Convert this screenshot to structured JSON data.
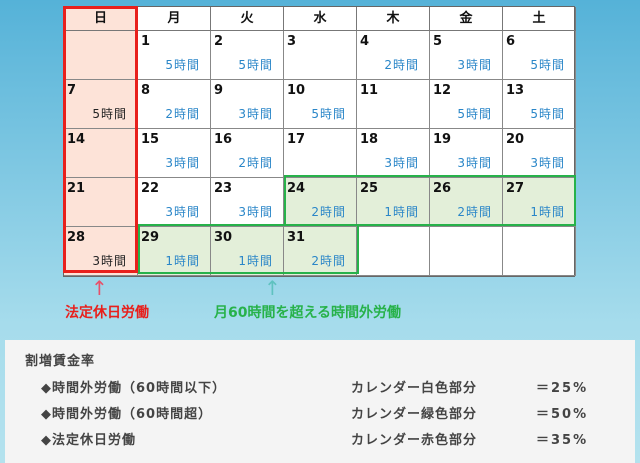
{
  "weekdays": [
    "日",
    "月",
    "火",
    "水",
    "木",
    "金",
    "土"
  ],
  "weeks": [
    [
      {
        "d": "",
        "h": ""
      },
      {
        "d": "1",
        "h": "5時間"
      },
      {
        "d": "2",
        "h": "5時間"
      },
      {
        "d": "3",
        "h": ""
      },
      {
        "d": "4",
        "h": "2時間"
      },
      {
        "d": "5",
        "h": "3時間"
      },
      {
        "d": "6",
        "h": "5時間"
      }
    ],
    [
      {
        "d": "7",
        "h": "5時間"
      },
      {
        "d": "8",
        "h": "2時間"
      },
      {
        "d": "9",
        "h": "3時間"
      },
      {
        "d": "10",
        "h": "5時間"
      },
      {
        "d": "11",
        "h": ""
      },
      {
        "d": "12",
        "h": "5時間"
      },
      {
        "d": "13",
        "h": "5時間"
      }
    ],
    [
      {
        "d": "14",
        "h": ""
      },
      {
        "d": "15",
        "h": "3時間"
      },
      {
        "d": "16",
        "h": "2時間"
      },
      {
        "d": "17",
        "h": ""
      },
      {
        "d": "18",
        "h": "3時間"
      },
      {
        "d": "19",
        "h": "3時間"
      },
      {
        "d": "20",
        "h": "3時間"
      }
    ],
    [
      {
        "d": "21",
        "h": ""
      },
      {
        "d": "22",
        "h": "3時間"
      },
      {
        "d": "23",
        "h": "3時間"
      },
      {
        "d": "24",
        "h": "2時間",
        "g": 1
      },
      {
        "d": "25",
        "h": "1時間",
        "g": 1
      },
      {
        "d": "26",
        "h": "2時間",
        "g": 1
      },
      {
        "d": "27",
        "h": "1時間",
        "g": 1
      }
    ],
    [
      {
        "d": "28",
        "h": "3時間"
      },
      {
        "d": "29",
        "h": "1時間",
        "g": 1
      },
      {
        "d": "30",
        "h": "1時間",
        "g": 1
      },
      {
        "d": "31",
        "h": "2時間",
        "g": 1
      },
      {
        "d": "",
        "h": ""
      },
      {
        "d": "",
        "h": ""
      },
      {
        "d": "",
        "h": ""
      }
    ]
  ],
  "labels": {
    "holiday": "法定休日労働",
    "overtime60": "月60時間を超える時間外労働"
  },
  "colors": {
    "holiday": "#e8201c",
    "overtime60": "#27b24a",
    "hours": "#2a86c8"
  },
  "rates": {
    "title": "割増賃金率",
    "items": [
      {
        "name": "◆時間外労働（60時間以下）",
        "part": "カレンダー白色部分",
        "rate": "＝25%"
      },
      {
        "name": "◆時間外労働（60時間超）",
        "part": "カレンダー緑色部分",
        "rate": "＝50%"
      },
      {
        "name": "◆法定休日労働",
        "part": "カレンダー赤色部分",
        "rate": "＝35%"
      }
    ]
  }
}
